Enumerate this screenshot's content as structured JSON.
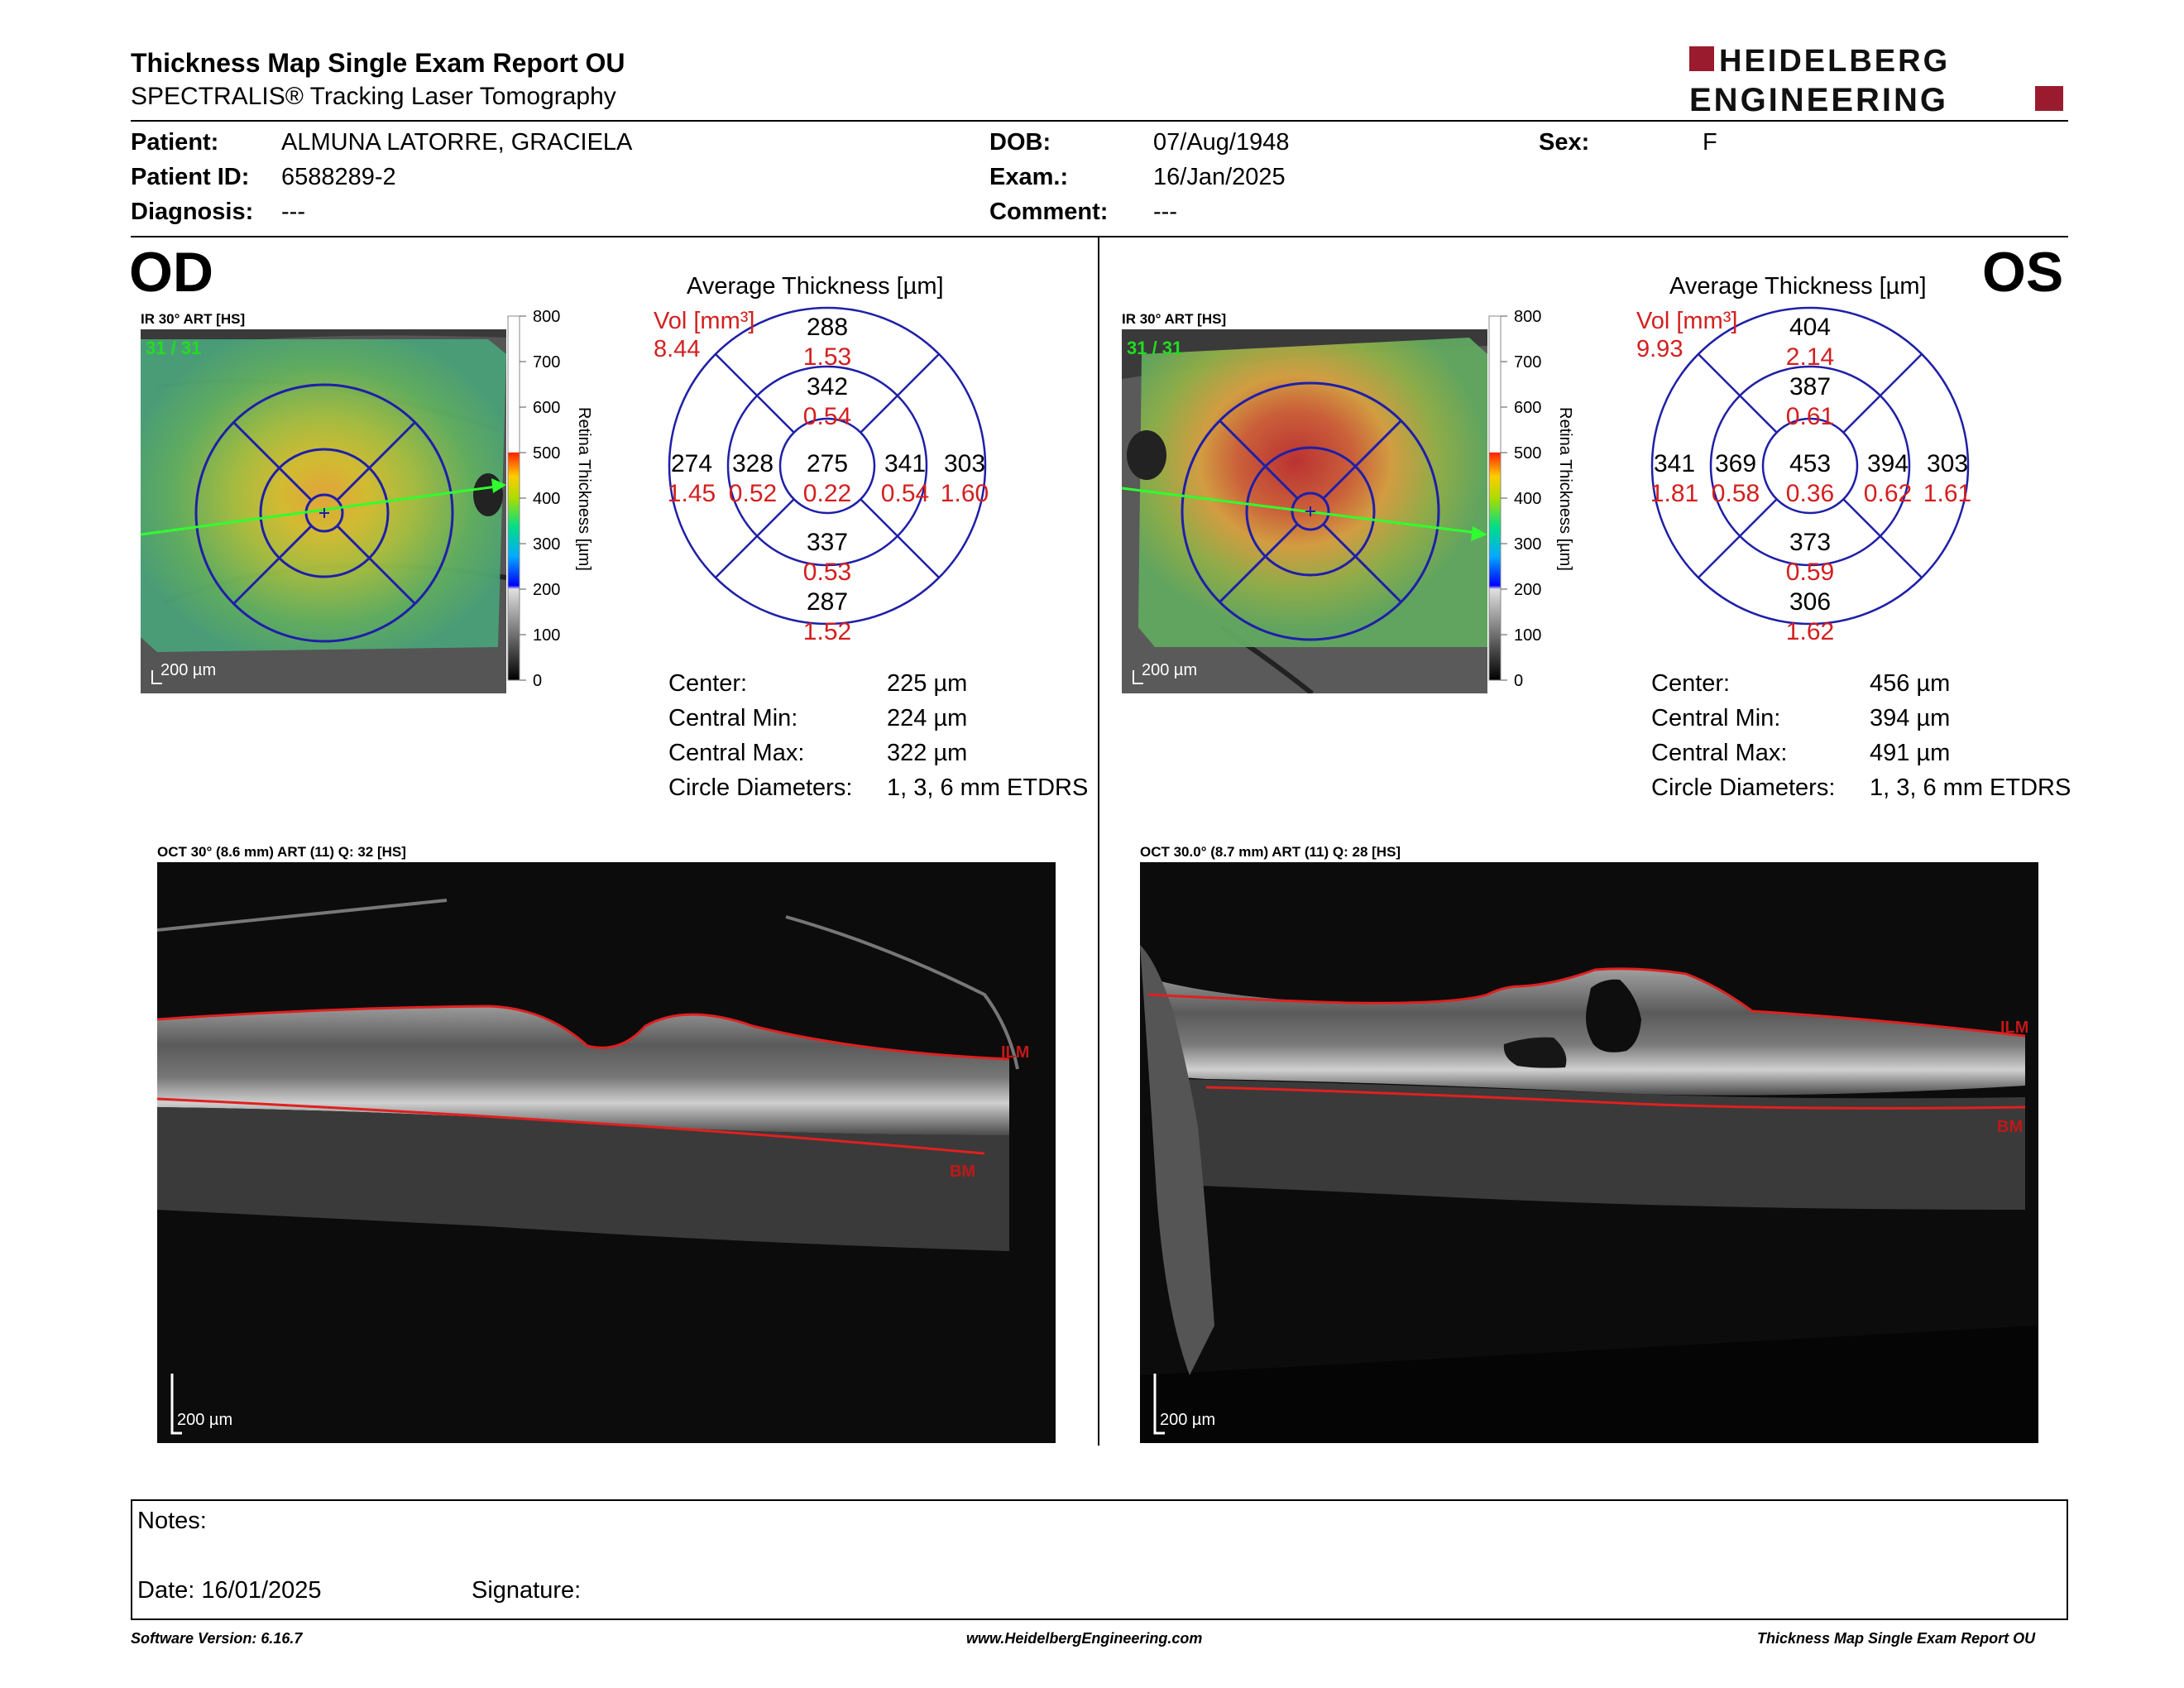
{
  "header": {
    "title": "Thickness Map Single Exam Report OU",
    "subtitle": "SPECTRALIS® Tracking Laser Tomography",
    "logo_line1": "HEIDELBERG",
    "logo_line2": "ENGINEERING"
  },
  "patient": {
    "patient_label": "Patient:",
    "patient_value": "ALMUNA LATORRE, GRACIELA",
    "id_label": "Patient ID:",
    "id_value": "6588289-2",
    "diagnosis_label": "Diagnosis:",
    "diagnosis_value": "---",
    "dob_label": "DOB:",
    "dob_value": "07/Aug/1948",
    "exam_label": "Exam.:",
    "exam_value": "16/Jan/2025",
    "comment_label": "Comment:",
    "comment_value": "---",
    "sex_label": "Sex:",
    "sex_value": "F"
  },
  "scale": {
    "ticks": [
      "800",
      "700",
      "600",
      "500",
      "400",
      "300",
      "200",
      "100",
      "0"
    ],
    "axis_label": "Retina  Thickness [µm]"
  },
  "od": {
    "eye": "OD",
    "ir_label": "IR 30° ART [HS]",
    "ir_counter": "31 / 31",
    "ir_scale": "200 µm",
    "avg_title": "Average Thickness [µm]",
    "vol_label": "Vol [mm³]",
    "vol_total": "8.44",
    "grid": {
      "center": {
        "thickness": "275",
        "volume": "0.22"
      },
      "inner_superior": {
        "thickness": "342",
        "volume": "0.54"
      },
      "inner_nasal": {
        "thickness": "328",
        "volume": "0.52"
      },
      "inner_temporal": {
        "thickness": "341",
        "volume": "0.54"
      },
      "inner_inferior": {
        "thickness": "337",
        "volume": "0.53"
      },
      "outer_superior": {
        "thickness": "288",
        "volume": "1.53"
      },
      "outer_nasal": {
        "thickness": "274",
        "volume": "1.45"
      },
      "outer_temporal": {
        "thickness": "303",
        "volume": "1.60"
      },
      "outer_inferior": {
        "thickness": "287",
        "volume": "1.52"
      }
    },
    "stats": {
      "center_label": "Center:",
      "center_value": "225 µm",
      "min_label": "Central Min:",
      "min_value": "224 µm",
      "max_label": "Central Max:",
      "max_value": "322 µm",
      "diam_label": "Circle Diameters:",
      "diam_value": "1, 3, 6 mm ETDRS"
    },
    "oct_label": "OCT 30° (8.6 mm) ART (11) Q: 32 [HS]",
    "oct_ilm": "ILM",
    "oct_bm": "BM",
    "oct_scale": "200 µm"
  },
  "os": {
    "eye": "OS",
    "ir_label": "IR 30° ART [HS]",
    "ir_counter": "31 / 31",
    "ir_scale": "200 µm",
    "avg_title": "Average Thickness [µm]",
    "vol_label": "Vol [mm³]",
    "vol_total": "9.93",
    "grid": {
      "center": {
        "thickness": "453",
        "volume": "0.36"
      },
      "inner_superior": {
        "thickness": "387",
        "volume": "0.61"
      },
      "inner_nasal": {
        "thickness": "369",
        "volume": "0.58"
      },
      "inner_temporal": {
        "thickness": "394",
        "volume": "0.62"
      },
      "inner_inferior": {
        "thickness": "373",
        "volume": "0.59"
      },
      "outer_superior": {
        "thickness": "404",
        "volume": "2.14"
      },
      "outer_nasal": {
        "thickness": "341",
        "volume": "1.81"
      },
      "outer_temporal": {
        "thickness": "303",
        "volume": "1.61"
      },
      "outer_inferior": {
        "thickness": "306",
        "volume": "1.62"
      }
    },
    "stats": {
      "center_label": "Center:",
      "center_value": "456 µm",
      "min_label": "Central Min:",
      "min_value": "394 µm",
      "max_label": "Central Max:",
      "max_value": "491 µm",
      "diam_label": "Circle Diameters:",
      "diam_value": "1, 3, 6 mm ETDRS"
    },
    "oct_label": "OCT 30.0° (8.7 mm) ART (11) Q: 28 [HS]",
    "oct_ilm": "ILM",
    "oct_bm": "BM",
    "oct_scale": "200 µm"
  },
  "notes": {
    "notes_label": "Notes:",
    "date_label": "Date: 16/01/2025",
    "signature_label": "Signature:"
  },
  "footer": {
    "software": "Software Version: 6.16.7",
    "website": "www.HeidelbergEngineering.com",
    "report_name": "Thickness Map Single Exam Report OU"
  },
  "colors": {
    "grid_blue": "#1f1fa8",
    "volume_red": "#d41f1f",
    "logo_red": "#9b1b2e",
    "counter_green": "#22dd22"
  }
}
